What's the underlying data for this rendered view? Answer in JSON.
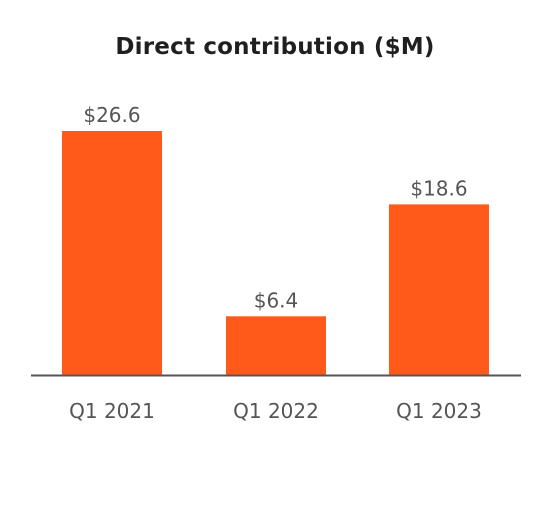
{
  "chart_data": {
    "type": "bar",
    "title": "Direct contribution ($M)",
    "categories": [
      "Q1 2021",
      "Q1 2022",
      "Q1 2023"
    ],
    "values": [
      26.6,
      6.4,
      18.6
    ],
    "value_labels": [
      "$26.6",
      "$6.4",
      "$18.6"
    ],
    "xlabel": "",
    "ylabel": "",
    "ylim": [
      0,
      26.6
    ],
    "grid": false,
    "legend": "none",
    "bar_color": "#FF5A1A",
    "axis_color": "#555555",
    "text_color": "#555555",
    "title_color": "#1f1f1f"
  }
}
